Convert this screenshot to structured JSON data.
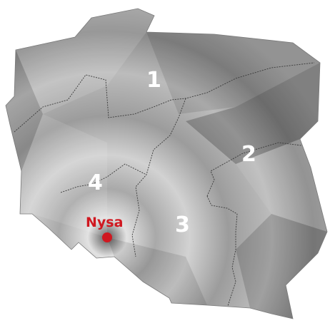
{
  "map": {
    "colors": {
      "land_light": "#c4c4c4",
      "land_mid": "#9a9a9a",
      "land_dark": "#6f6f6f",
      "border_line": "#3a3a3a",
      "region_label": "#ffffff",
      "city_marker": "#d01820"
    },
    "regions": [
      {
        "id": "1",
        "label": "1"
      },
      {
        "id": "2",
        "label": "2"
      },
      {
        "id": "3",
        "label": "3"
      },
      {
        "id": "4",
        "label": "4"
      }
    ],
    "city": {
      "name": "Nysa"
    }
  }
}
